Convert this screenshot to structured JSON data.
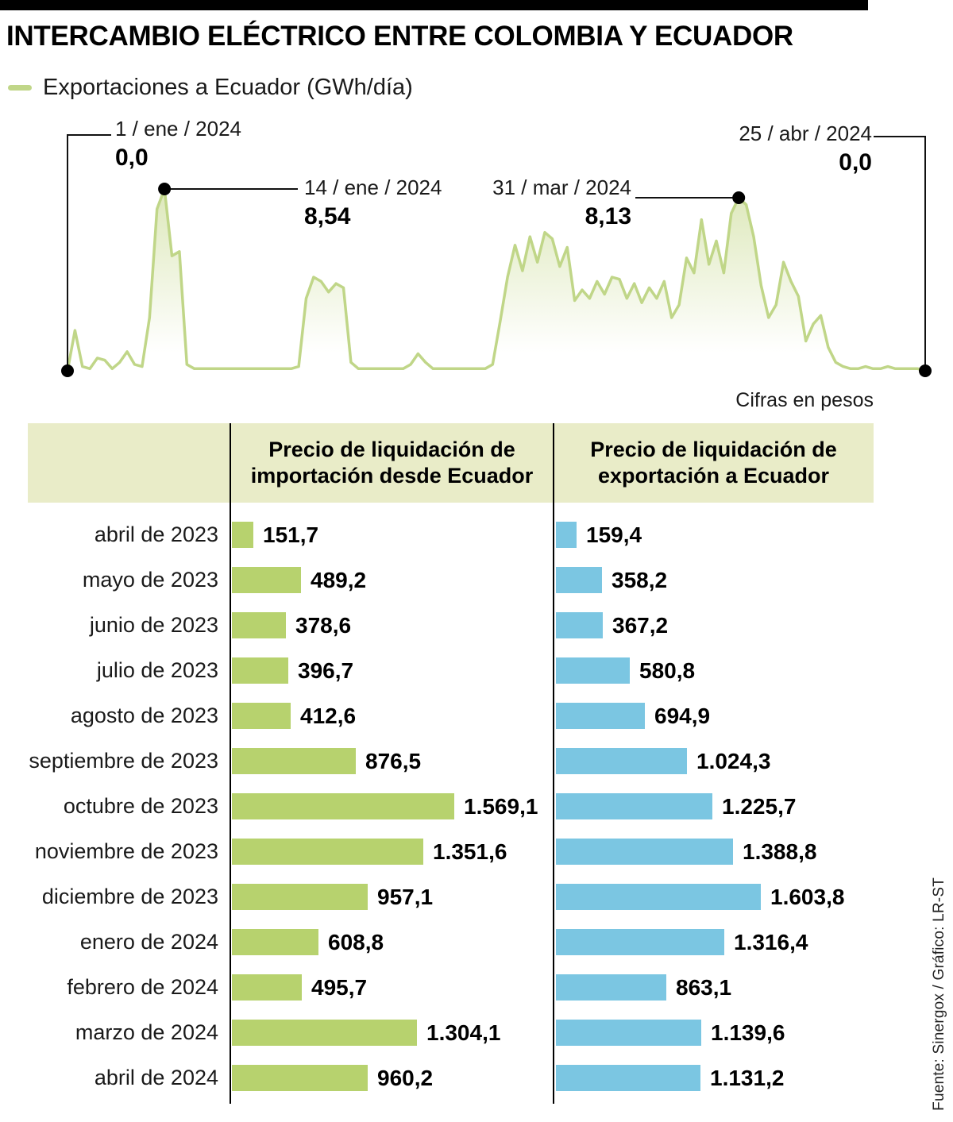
{
  "title": "INTERCAMBIO ELÉCTRICO ENTRE COLOMBIA Y ECUADOR",
  "legend": {
    "label": "Exportaciones a Ecuador (GWh/día)"
  },
  "units_note": "Cifras en pesos",
  "source": "Fuente:  Sinergox / Gráfico: LR-ST",
  "colors": {
    "line_green": "#c0d688",
    "area_top": "#dde8ba",
    "bar_green": "#b7d26e",
    "bar_blue": "#7bc6e2",
    "header_bg": "#e9ecc8",
    "callout": "#111111",
    "dot": "#000000"
  },
  "table": {
    "col1_header": "Precio de liquidación de\nimportación desde Ecuador",
    "col2_header": "Precio de liquidación de\nexportación a Ecuador"
  },
  "chart_data": [
    {
      "type": "area",
      "title": "Exportaciones a Ecuador (GWh/día)",
      "x_start": "1 / ene / 2024",
      "x_end": "25 / abr / 2024",
      "ylabel": "GWh/día",
      "ylim": [
        0,
        9
      ],
      "grid": false,
      "annotations": [
        {
          "date": "1 / ene / 2024",
          "value_label": "0,0",
          "value": 0.0,
          "index": 0
        },
        {
          "date": "14 / ene / 2024",
          "value_label": "8,54",
          "value": 8.54,
          "index": 13
        },
        {
          "date": "31 / mar / 2024",
          "value_label": "8,13",
          "value": 8.13,
          "index": 90
        },
        {
          "date": "25 / abr / 2024",
          "value_label": "0,0",
          "value": 0.0,
          "index": 115
        }
      ],
      "values": [
        0.0,
        1.9,
        0.2,
        0.1,
        0.6,
        0.5,
        0.1,
        0.4,
        0.9,
        0.3,
        0.2,
        2.5,
        7.6,
        8.54,
        5.4,
        5.6,
        0.3,
        0.1,
        0.1,
        0.1,
        0.1,
        0.1,
        0.1,
        0.1,
        0.1,
        0.1,
        0.1,
        0.1,
        0.1,
        0.1,
        0.1,
        0.2,
        3.4,
        4.4,
        4.2,
        3.7,
        4.1,
        3.9,
        0.4,
        0.1,
        0.1,
        0.1,
        0.1,
        0.1,
        0.1,
        0.1,
        0.3,
        0.8,
        0.4,
        0.1,
        0.1,
        0.1,
        0.1,
        0.1,
        0.1,
        0.1,
        0.1,
        0.3,
        2.3,
        4.4,
        5.9,
        4.7,
        6.3,
        5.1,
        6.5,
        6.2,
        4.9,
        5.8,
        3.3,
        3.8,
        3.4,
        4.2,
        3.6,
        4.4,
        4.3,
        3.4,
        4.1,
        3.2,
        3.9,
        3.4,
        4.2,
        2.5,
        3.1,
        5.3,
        4.6,
        7.1,
        5.0,
        6.1,
        4.6,
        7.4,
        8.13,
        7.8,
        6.3,
        4.0,
        2.5,
        3.1,
        5.1,
        4.2,
        3.5,
        1.4,
        2.2,
        2.6,
        1.1,
        0.4,
        0.2,
        0.1,
        0.1,
        0.2,
        0.1,
        0.1,
        0.2,
        0.1,
        0.1,
        0.1,
        0.1,
        0.0
      ]
    },
    {
      "type": "bar",
      "title": "Cifras en pesos",
      "categories": [
        "abril de 2023",
        "mayo de 2023",
        "junio de 2023",
        "julio de 2023",
        "agosto de 2023",
        "septiembre de 2023",
        "octubre de 2023",
        "noviembre de 2023",
        "diciembre de 2023",
        "enero de 2024",
        "febrero de 2024",
        "marzo de 2024",
        "abril de 2024"
      ],
      "series": [
        {
          "name": "Precio de liquidación de importación desde Ecuador",
          "color": "#b7d26e",
          "values": [
            151.7,
            489.2,
            378.6,
            396.7,
            412.6,
            876.5,
            1569.1,
            1351.6,
            957.1,
            608.8,
            495.7,
            1304.1,
            960.2
          ],
          "labels": [
            "151,7",
            "489,2",
            "378,6",
            "396,7",
            "412,6",
            "876,5",
            "1.569,1",
            "1.351,6",
            "957,1",
            "608,8",
            "495,7",
            "1.304,1",
            "960,2"
          ]
        },
        {
          "name": "Precio de liquidación de exportación a Ecuador",
          "color": "#7bc6e2",
          "values": [
            159.4,
            358.2,
            367.2,
            580.8,
            694.9,
            1024.3,
            1225.7,
            1388.8,
            1603.8,
            1316.4,
            863.1,
            1139.6,
            1131.2
          ],
          "labels": [
            "159,4",
            "358,2",
            "367,2",
            "580,8",
            "694,9",
            "1.024,3",
            "1.225,7",
            "1.388,8",
            "1.603,8",
            "1.316,4",
            "863,1",
            "1.139,6",
            "1.131,2"
          ]
        }
      ]
    }
  ]
}
